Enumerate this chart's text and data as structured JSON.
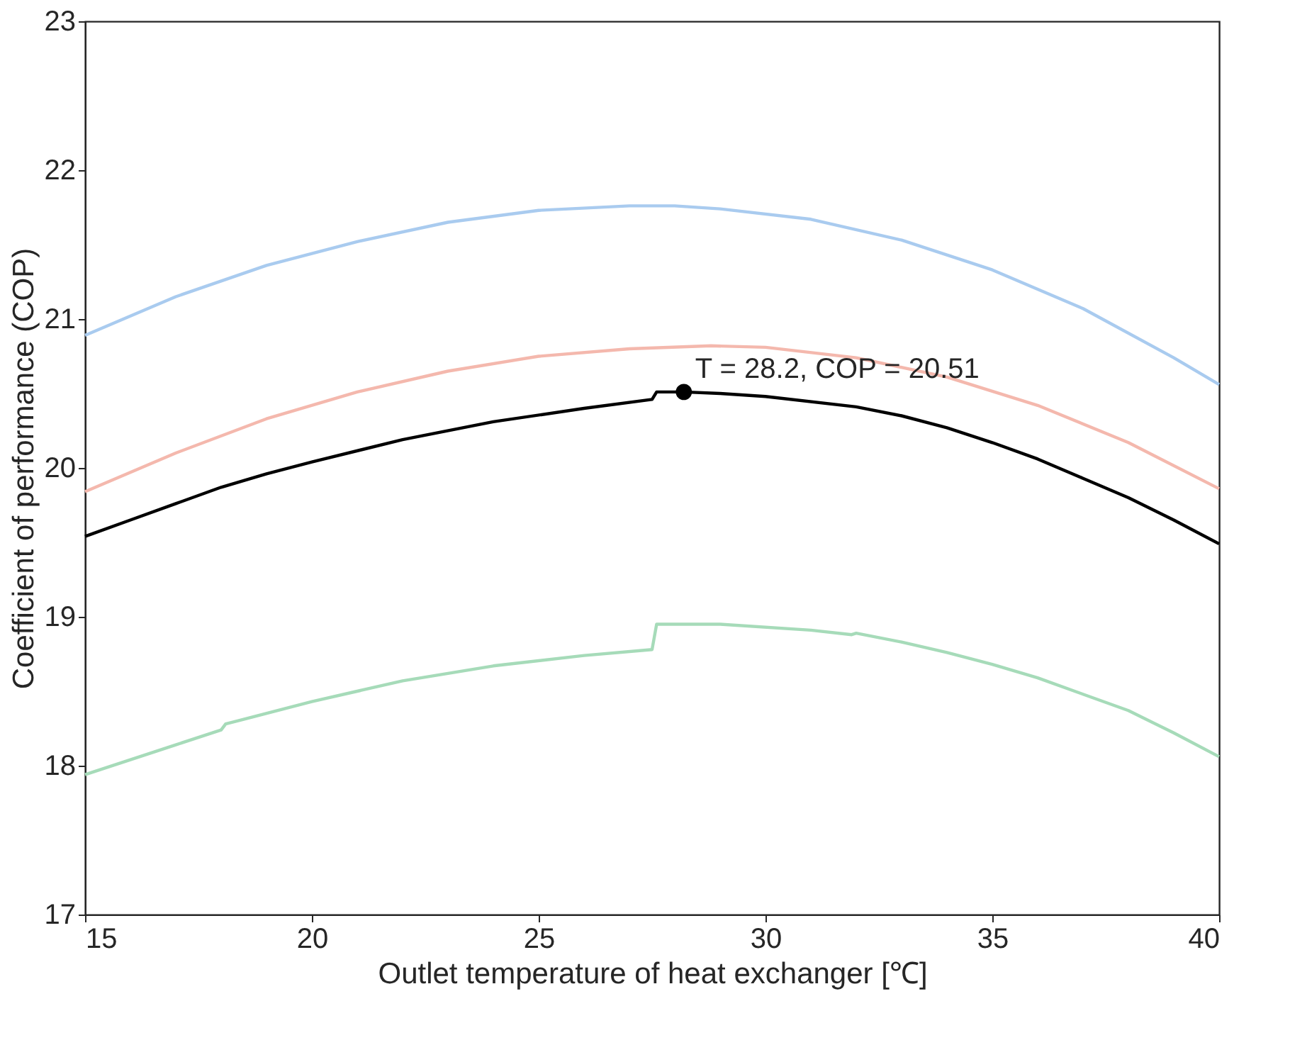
{
  "chart_data": {
    "type": "line",
    "xlabel": "Outlet temperature of heat exchanger [℃]",
    "ylabel": "Coefficient of performance (COP)",
    "xlim": [
      15,
      40
    ],
    "xticks": [
      15,
      20,
      25,
      30,
      35,
      40
    ],
    "ylim": [
      17,
      23
    ],
    "yticks": [
      17,
      18,
      19,
      20,
      21,
      22,
      23
    ],
    "grid": false,
    "line_style": "solid",
    "marker": "none",
    "series": [
      {
        "color": "#a9cbef",
        "x": [
          15,
          17,
          19,
          21,
          23,
          25,
          27,
          28,
          29,
          31,
          33,
          35,
          37,
          39,
          40
        ],
        "values": [
          20.89,
          21.15,
          21.36,
          21.52,
          21.65,
          21.73,
          21.76,
          21.76,
          21.74,
          21.67,
          21.53,
          21.33,
          21.07,
          20.74,
          20.56
        ]
      },
      {
        "color": "#f4b8ad",
        "x": [
          15,
          17,
          19,
          21,
          23,
          25,
          27,
          28.8,
          30,
          32,
          34,
          36,
          38,
          40
        ],
        "values": [
          19.84,
          20.1,
          20.33,
          20.51,
          20.65,
          20.75,
          20.8,
          20.82,
          20.81,
          20.74,
          20.61,
          20.42,
          20.17,
          19.86
        ]
      },
      {
        "color": "#000000",
        "x": [
          15,
          16,
          17,
          18,
          19,
          20,
          22,
          24,
          26,
          27.5,
          27.6,
          28.2,
          29,
          30,
          32,
          33,
          34,
          35,
          36,
          37,
          38,
          39,
          40
        ],
        "values": [
          19.54,
          19.65,
          19.76,
          19.87,
          19.96,
          20.04,
          20.19,
          20.31,
          20.4,
          20.46,
          20.51,
          20.51,
          20.5,
          20.48,
          20.41,
          20.35,
          20.27,
          20.17,
          20.06,
          19.93,
          19.8,
          19.65,
          19.49
        ]
      },
      {
        "color": "#a6dbb9",
        "x": [
          15,
          16,
          17,
          18,
          18.1,
          20,
          22,
          24,
          26,
          27.5,
          27.6,
          29,
          31,
          31.9,
          32,
          33,
          34,
          35,
          36,
          37,
          38,
          39,
          40
        ],
        "values": [
          17.94,
          18.04,
          18.14,
          18.24,
          18.28,
          18.43,
          18.57,
          18.67,
          18.74,
          18.78,
          18.95,
          18.95,
          18.91,
          18.88,
          18.89,
          18.83,
          18.76,
          18.68,
          18.59,
          18.48,
          18.37,
          18.22,
          18.06
        ]
      },
      {
        "type": "scatter",
        "marker": "circle",
        "color": "#000000",
        "x": [
          28.2
        ],
        "values": [
          20.51
        ]
      }
    ],
    "annotations": [
      {
        "text": "T = 28.2, COP = 20.51",
        "x": 28.2,
        "y": 20.51
      }
    ]
  }
}
